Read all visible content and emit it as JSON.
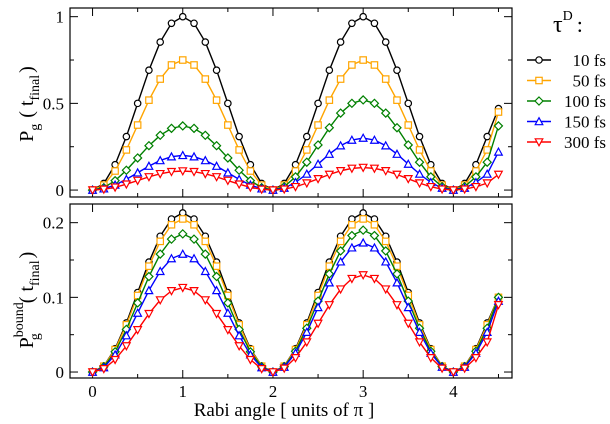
{
  "legend": {
    "title_main": "τ",
    "title_sup": "D",
    "title_colon": ":",
    "entries": [
      {
        "label": "10 fs",
        "color": "#000000",
        "marker": "circle"
      },
      {
        "label": "50 fs",
        "color": "#ffa500",
        "marker": "square"
      },
      {
        "label": "100 fs",
        "color": "#008000",
        "marker": "diamond"
      },
      {
        "label": "150 fs",
        "color": "#0000ff",
        "marker": "triangle-up"
      },
      {
        "label": "300 fs",
        "color": "#ff0000",
        "marker": "triangle-down"
      }
    ]
  },
  "x_axis": {
    "label": "Rabi angle [ units of π ]",
    "ticks": [
      "0",
      "1",
      "2",
      "3",
      "4"
    ]
  },
  "chart_data": [
    {
      "type": "line",
      "panel": "top",
      "ylabel": {
        "main": "P",
        "sub": "g",
        "paren_open": "( t",
        "paren_sub": "final",
        "paren_close": ")"
      },
      "xlim": [
        -0.25,
        4.65
      ],
      "ylim": [
        -0.04,
        1.05
      ],
      "x": [
        0,
        0.125,
        0.25,
        0.375,
        0.5,
        0.625,
        0.75,
        0.875,
        1,
        1.125,
        1.25,
        1.375,
        1.5,
        1.625,
        1.75,
        1.875,
        2,
        2.125,
        2.25,
        2.375,
        2.5,
        2.625,
        2.75,
        2.875,
        3,
        3.125,
        3.25,
        3.375,
        3.5,
        3.625,
        3.75,
        3.875,
        4,
        4.125,
        4.25,
        4.375,
        4.5
      ],
      "yticks": [
        0,
        0.5,
        1
      ],
      "ytick_labels": [
        "0",
        "0.5",
        "1"
      ],
      "series": [
        {
          "name": "10 fs",
          "amplitude": 1.0,
          "period": 2,
          "ends": [
            0.47
          ]
        },
        {
          "name": "50 fs",
          "amplitude": 0.75,
          "period": 2,
          "ends": [
            0.45
          ]
        },
        {
          "name": "100 fs",
          "amplitude": 0.37,
          "amp2": 0.52,
          "period": 2,
          "ends": [
            0.37
          ]
        },
        {
          "name": "150 fs",
          "amplitude": 0.2,
          "amp2": 0.3,
          "period": 2,
          "ends": [
            0.22
          ]
        },
        {
          "name": "300 fs",
          "amplitude": 0.11,
          "amp2": 0.13,
          "period": 2,
          "ends": [
            0.09
          ]
        }
      ]
    },
    {
      "type": "line",
      "panel": "bottom",
      "ylabel": {
        "main": "P",
        "sub": "g",
        "sup": "bound",
        "paren_open": "( t",
        "paren_sub": "final",
        "paren_close": ")"
      },
      "xlim": [
        -0.25,
        4.65
      ],
      "ylim": [
        -0.008,
        0.225
      ],
      "x": [
        0,
        0.125,
        0.25,
        0.375,
        0.5,
        0.625,
        0.75,
        0.875,
        1,
        1.125,
        1.25,
        1.375,
        1.5,
        1.625,
        1.75,
        1.875,
        2,
        2.125,
        2.25,
        2.375,
        2.5,
        2.625,
        2.75,
        2.875,
        3,
        3.125,
        3.25,
        3.375,
        3.5,
        3.625,
        3.75,
        3.875,
        4,
        4.125,
        4.25,
        4.375,
        4.5
      ],
      "yticks": [
        0,
        0.1,
        0.2
      ],
      "ytick_labels": [
        "0",
        "0.1",
        "0.2"
      ],
      "series": [
        {
          "name": "10 fs",
          "amplitude": 0.213,
          "period": 2,
          "ends": [
            0.1
          ]
        },
        {
          "name": "50 fs",
          "amplitude": 0.205,
          "period": 2,
          "ends": [
            0.1
          ]
        },
        {
          "name": "100 fs",
          "amplitude": 0.185,
          "amp2": 0.19,
          "period": 2,
          "ends": [
            0.1
          ]
        },
        {
          "name": "150 fs",
          "amplitude": 0.158,
          "amp2": 0.173,
          "period": 2,
          "ends": [
            0.095
          ]
        },
        {
          "name": "300 fs",
          "amplitude": 0.113,
          "amp2": 0.13,
          "period": 2,
          "ends": [
            0.09
          ]
        }
      ]
    }
  ]
}
